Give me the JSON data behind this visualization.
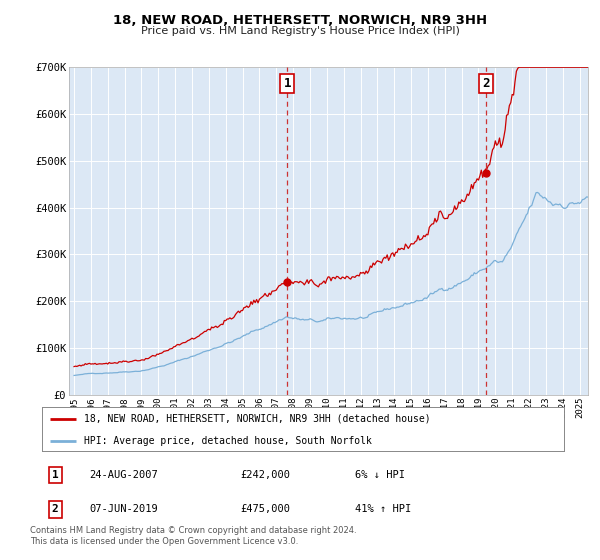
{
  "title": "18, NEW ROAD, HETHERSETT, NORWICH, NR9 3HH",
  "subtitle": "Price paid vs. HM Land Registry's House Price Index (HPI)",
  "background_color": "#ffffff",
  "plot_bg_color": "#dce8f5",
  "grid_color": "#ffffff",
  "hpi_color": "#7bb0d8",
  "price_color": "#cc0000",
  "marker_color": "#cc0000",
  "vline_color": "#cc3333",
  "ylim": [
    0,
    700000
  ],
  "yticks": [
    0,
    100000,
    200000,
    300000,
    400000,
    500000,
    600000,
    700000
  ],
  "ytick_labels": [
    "£0",
    "£100K",
    "£200K",
    "£300K",
    "£400K",
    "£500K",
    "£600K",
    "£700K"
  ],
  "xlim_start": 1994.7,
  "xlim_end": 2025.5,
  "xticks": [
    1995,
    1996,
    1997,
    1998,
    1999,
    2000,
    2001,
    2002,
    2003,
    2004,
    2005,
    2006,
    2007,
    2008,
    2009,
    2010,
    2011,
    2012,
    2013,
    2014,
    2015,
    2016,
    2017,
    2018,
    2019,
    2020,
    2021,
    2022,
    2023,
    2024,
    2025
  ],
  "sale1_x": 2007.645,
  "sale1_y": 242000,
  "sale1_label": "1",
  "sale2_x": 2019.436,
  "sale2_y": 475000,
  "sale2_label": "2",
  "legend_line1": "18, NEW ROAD, HETHERSETT, NORWICH, NR9 3HH (detached house)",
  "legend_line2": "HPI: Average price, detached house, South Norfolk",
  "table_row1": [
    "1",
    "24-AUG-2007",
    "£242,000",
    "6% ↓ HPI"
  ],
  "table_row2": [
    "2",
    "07-JUN-2019",
    "£475,000",
    "41% ↑ HPI"
  ],
  "footer": "Contains HM Land Registry data © Crown copyright and database right 2024.\nThis data is licensed under the Open Government Licence v3.0."
}
